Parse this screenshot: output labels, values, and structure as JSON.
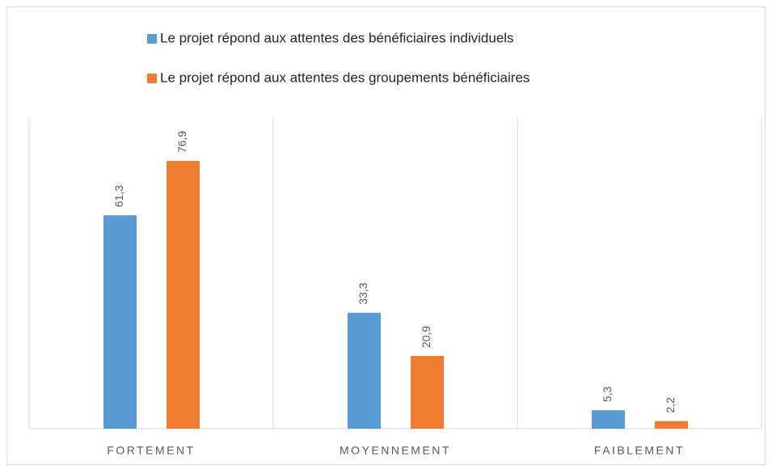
{
  "chart_data": {
    "type": "bar",
    "categories": [
      "FORTEMENT",
      "MOYENNEMENT",
      "FAIBLEMENT"
    ],
    "series": [
      {
        "name": "Le projet répond aux  attentes des bénéficiaires individuels",
        "color": "#5b9bd5",
        "values": [
          61.3,
          33.3,
          5.3
        ],
        "value_labels": [
          "61,3",
          "33,3",
          "5,3"
        ]
      },
      {
        "name": "Le projet répond aux  attentes des  groupements bénéficiaires",
        "color": "#ed7d31",
        "values": [
          76.9,
          20.9,
          2.2
        ],
        "value_labels": [
          "76,9",
          "20,9",
          "2,2"
        ]
      }
    ]
  }
}
